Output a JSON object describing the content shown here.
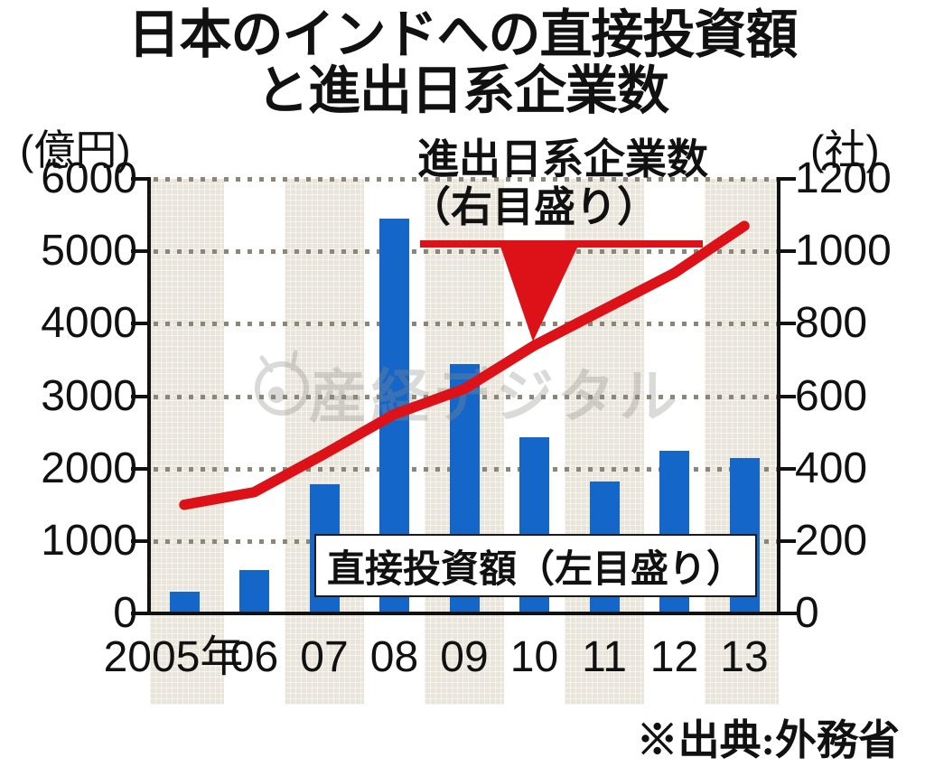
{
  "title": {
    "line1": "日本のインドへの直接投資額",
    "line2": "と進出日系企業数"
  },
  "axes": {
    "left_unit": "(億円)",
    "right_unit": "(社)",
    "left_ticks": [
      "6000",
      "5000",
      "4000",
      "3000",
      "2000",
      "1000",
      "0"
    ],
    "right_ticks": [
      "1200",
      "1000",
      "800",
      "600",
      "400",
      "200",
      "0"
    ]
  },
  "chart_data": {
    "type": "bar",
    "categories": [
      "2005年",
      "06",
      "07",
      "08",
      "09",
      "10",
      "11",
      "12",
      "13"
    ],
    "series": [
      {
        "name": "直接投資額（左目盛り）",
        "type": "bar",
        "axis": "left",
        "unit": "億円",
        "values": [
          300,
          600,
          1780,
          5450,
          3440,
          2430,
          1820,
          2250,
          2150
        ]
      },
      {
        "name": "進出日系企業数（右目盛り）",
        "type": "line",
        "axis": "right",
        "unit": "社",
        "values": [
          300,
          335,
          440,
          550,
          620,
          740,
          840,
          940,
          1070
        ]
      }
    ],
    "title": "日本のインドへの直接投資額と進出日系企業数",
    "xlabel": "年",
    "ylabel_left": "億円",
    "ylabel_right": "社",
    "left_axis": {
      "min": 0,
      "max": 6000,
      "step": 1000
    },
    "right_axis": {
      "min": 0,
      "max": 1200,
      "step": 200
    },
    "grid": "dotted horizontal gridlines",
    "background_bands": "beige vertical bands on years 2005, 07, 09, 11, 13",
    "legend_position": "annotations inside plot"
  },
  "annotations": {
    "line_label_1": "進出日系企業数",
    "line_label_2": "（右目盛り）",
    "bar_label": "直接投資額（左目盛り）"
  },
  "source": "※出典:外務省",
  "watermark": "産経デジタル",
  "colors": {
    "bar": "#1566c9",
    "line": "#dc1218",
    "band": "#e9e5da",
    "grid_dot": "#8b857a"
  }
}
